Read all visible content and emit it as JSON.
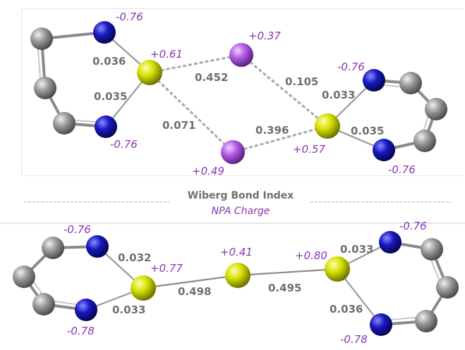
{
  "legend": {
    "bond_index_label": "Wiberg Bond Index",
    "charge_label": "NPA Charge"
  },
  "colors": {
    "carbon": "#8c8c8c",
    "nitrogen": "#1515b8",
    "sulfur": "#d2dc00",
    "iodine": "#b055e0",
    "bond_index_text": "#6f6f6f",
    "charge_text": "#8a35b0"
  },
  "top_panel": {
    "charges": {
      "n_top_left": "-0.76",
      "n_bottom_left": "-0.76",
      "s_left": "+0.61",
      "i_top": "+0.37",
      "i_bottom": "+0.49",
      "s_right": "+0.57",
      "n_top_right": "-0.76",
      "n_bottom_right": "-0.76"
    },
    "bond_indices": {
      "s_left_n_top": "0.036",
      "s_left_n_bottom": "0.035",
      "s_left_i_top": "0.452",
      "s_left_i_bottom": "0.071",
      "i_top_s_right": "0.105",
      "i_bottom_s_right": "0.396",
      "s_right_n_top": "0.033",
      "s_right_n_bottom": "0.035"
    }
  },
  "bottom_panel": {
    "charges": {
      "n_top_left": "-0.76",
      "n_bottom_left": "-0.78",
      "s_left": "+0.77",
      "s_center": "+0.41",
      "s_right": "+0.80",
      "n_top_right": "-0.76",
      "n_bottom_right": "-0.78"
    },
    "bond_indices": {
      "s_left_n_top": "0.032",
      "s_left_n_bottom": "0.033",
      "s_left_s_center": "0.498",
      "s_center_s_right": "0.495",
      "s_right_n_top": "0.033",
      "s_right_n_bottom": "0.036"
    }
  }
}
